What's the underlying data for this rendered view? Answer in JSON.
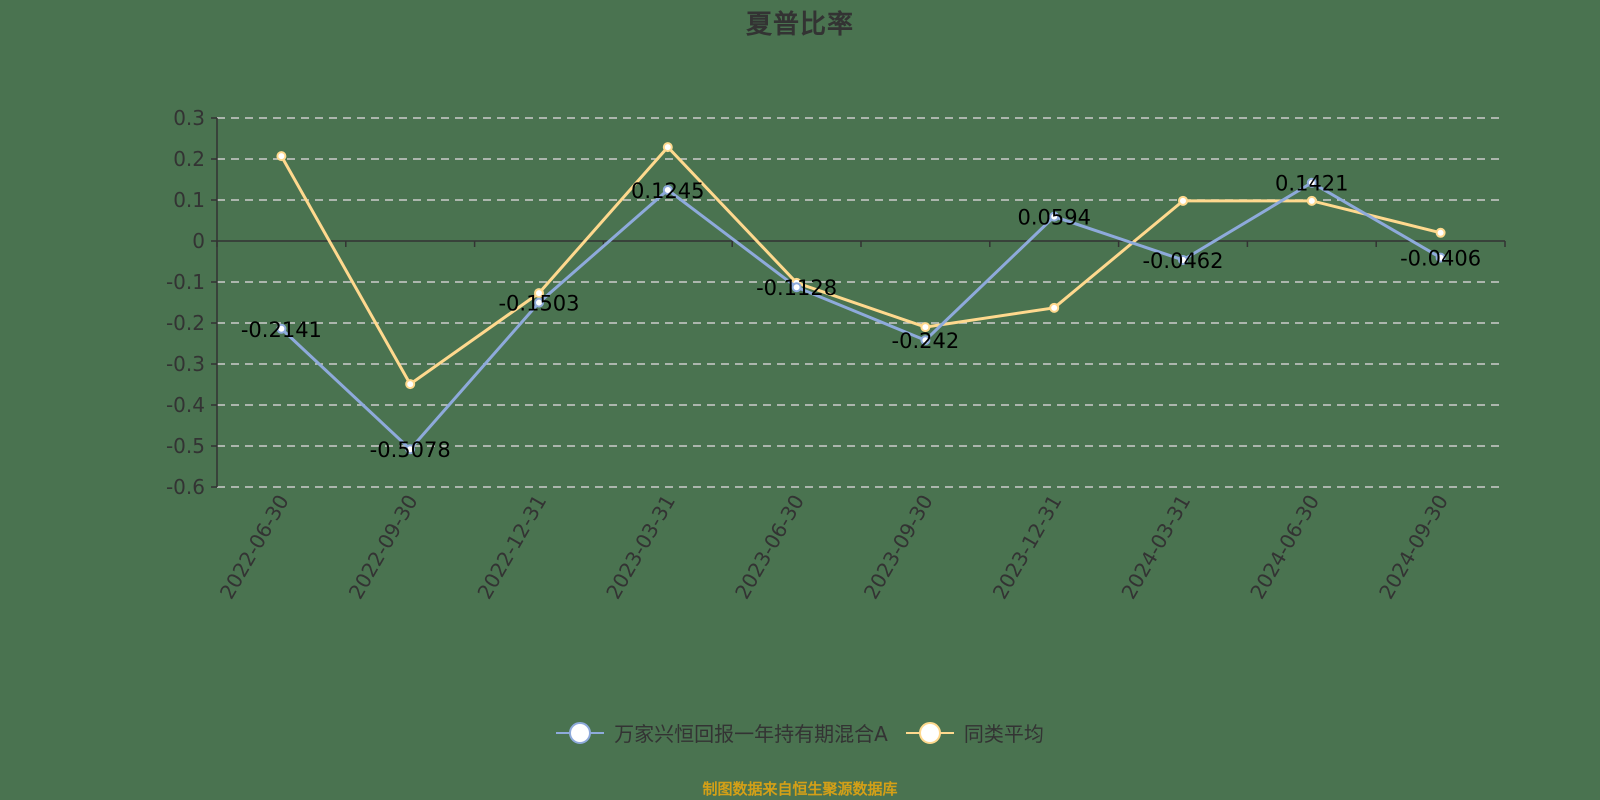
{
  "title": "夏普比率",
  "source_note": "制图数据来自恒生聚源数据库",
  "legend": [
    {
      "label": "万家兴恒回报一年持有期混合A",
      "color": "#8eaadb"
    },
    {
      "label": "同类平均",
      "color": "#ffd98e"
    }
  ],
  "chart_data": {
    "type": "line",
    "title": "夏普比率",
    "xlabel": "",
    "ylabel": "",
    "ylim": [
      -0.6,
      0.3
    ],
    "yticks": [
      0.3,
      0.2,
      0.1,
      0,
      -0.1,
      -0.2,
      -0.3,
      -0.4,
      -0.5,
      -0.6
    ],
    "grid": true,
    "legend_position": "bottom",
    "categories": [
      "2022-06-30",
      "2022-09-30",
      "2022-12-31",
      "2023-03-31",
      "2023-06-30",
      "2023-09-30",
      "2023-12-31",
      "2024-03-31",
      "2024-06-30",
      "2024-09-30"
    ],
    "series": [
      {
        "name": "万家兴恒回报一年持有期混合A",
        "color": "#8eaadb",
        "values": [
          -0.2141,
          -0.5078,
          -0.1503,
          0.1245,
          -0.1128,
          -0.242,
          0.0594,
          -0.0462,
          0.1421,
          -0.0406
        ],
        "labels": [
          "-0.2141",
          "-0.5078",
          "-0.1503",
          "0.1245",
          "-0.1128",
          "-0.242",
          "0.0594",
          "-0.0462",
          "0.1421",
          "-0.0406"
        ]
      },
      {
        "name": "同类平均",
        "color": "#ffd98e",
        "values": [
          0.207,
          -0.349,
          -0.127,
          0.229,
          -0.102,
          -0.21,
          -0.163,
          0.098,
          0.098,
          0.02
        ]
      }
    ]
  }
}
